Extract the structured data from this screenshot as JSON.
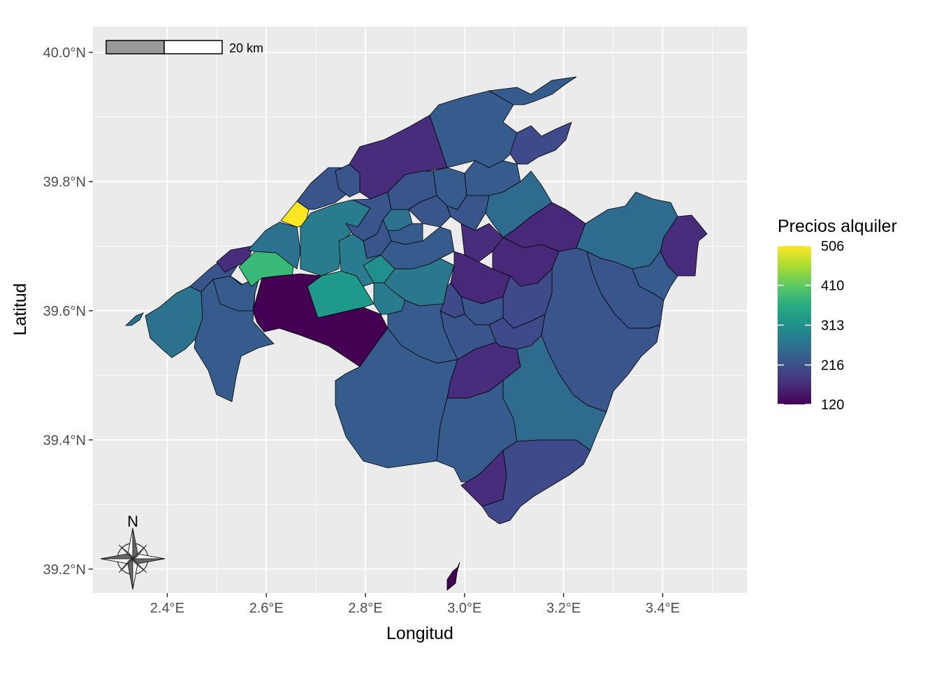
{
  "map": {
    "x_axis": {
      "title": "Longitud",
      "ticks": [
        {
          "value": 2.4,
          "label": "2.4°E"
        },
        {
          "value": 2.6,
          "label": "2.6°E"
        },
        {
          "value": 2.8,
          "label": "2.8°E"
        },
        {
          "value": 3.0,
          "label": "3.0°E"
        },
        {
          "value": 3.2,
          "label": "3.2°E"
        },
        {
          "value": 3.4,
          "label": "3.4°E"
        }
      ],
      "range": [
        2.25,
        3.57
      ]
    },
    "y_axis": {
      "title": "Latitud",
      "ticks": [
        {
          "value": 39.2,
          "label": "39.2°N"
        },
        {
          "value": 39.4,
          "label": "39.4°N"
        },
        {
          "value": 39.6,
          "label": "39.6°N"
        },
        {
          "value": 39.8,
          "label": "39.8°N"
        },
        {
          "value": 40.0,
          "label": "40.0°N"
        }
      ],
      "range": [
        39.163,
        40.04
      ]
    },
    "legend": {
      "title": "Precios alquiler",
      "min": 120,
      "max": 506,
      "breaks": [
        {
          "value": 506,
          "label": "506"
        },
        {
          "value": 410,
          "label": "410"
        },
        {
          "value": 313,
          "label": "313"
        },
        {
          "value": 216,
          "label": "216"
        },
        {
          "value": 120,
          "label": "120"
        }
      ],
      "colors": [
        "#440154",
        "#472D7B",
        "#3B528B",
        "#2C728E",
        "#21908C",
        "#27AD81",
        "#5DC863",
        "#AADC32",
        "#FDE725"
      ]
    },
    "scale_bar": {
      "label": "20 km"
    },
    "north_arrow": {
      "label": "N"
    },
    "background_color": "#EBEBEB",
    "grid_color": "#FFFFFF"
  }
}
